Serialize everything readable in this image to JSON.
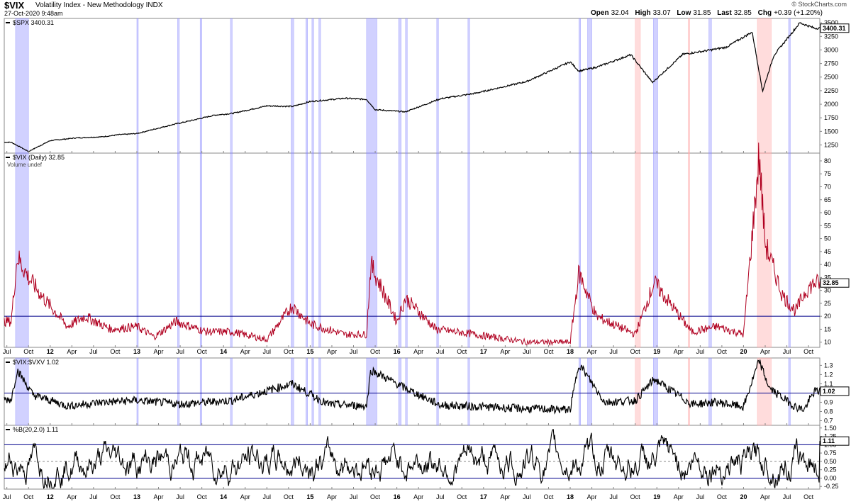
{
  "header": {
    "symbol": "$VIX",
    "name": "Volatility Index - New Methodology",
    "exchange": "INDX",
    "timestamp": "27-Oct-2020 9:48am",
    "brand": "© StockCharts.com",
    "open_label": "Open",
    "open": "32.04",
    "high_label": "High",
    "high": "33.07",
    "low_label": "Low",
    "low": "31.85",
    "last_label": "Last",
    "last": "32.85",
    "chg_label": "Chg",
    "chg": "+0.39 (+1.20%)"
  },
  "chart_data": [
    {
      "type": "line",
      "legend": "$SPX 3400.31",
      "last_value_label": "3400.31",
      "yticks": [
        1250,
        1500,
        1750,
        2000,
        2250,
        2500,
        2750,
        3000,
        3250,
        3500
      ],
      "ylim": [
        1100,
        3580
      ],
      "x": [
        2011.55,
        2011.75,
        2012.0,
        2012.3,
        2012.6,
        2012.8,
        2013.0,
        2013.4,
        2013.6,
        2013.9,
        2014.1,
        2014.5,
        2014.8,
        2015.0,
        2015.4,
        2015.65,
        2015.75,
        2016.1,
        2016.5,
        2016.9,
        2017.5,
        2018.0,
        2018.1,
        2018.3,
        2018.7,
        2018.95,
        2019.3,
        2019.55,
        2019.8,
        2020.1,
        2020.22,
        2020.35,
        2020.5,
        2020.65,
        2020.82
      ],
      "values": [
        1300,
        1130,
        1330,
        1380,
        1400,
        1440,
        1460,
        1620,
        1690,
        1800,
        1830,
        1970,
        1960,
        2050,
        2110,
        2090,
        1900,
        1860,
        2100,
        2200,
        2420,
        2780,
        2610,
        2680,
        2910,
        2400,
        2920,
        2980,
        3050,
        3330,
        2240,
        2900,
        3200,
        3500,
        3400
      ]
    },
    {
      "type": "line",
      "legend": "$VIX (Daily) 32.85",
      "sublegend": "Volume undef",
      "last_value_label": "32.85",
      "yticks": [
        10,
        15,
        20,
        25,
        30,
        35,
        40,
        45,
        50,
        55,
        60,
        65,
        70,
        75,
        80
      ],
      "ylim": [
        8,
        83
      ],
      "reference_line": 20,
      "x": [
        2011.55,
        2011.62,
        2011.75,
        2011.9,
        2012.2,
        2012.4,
        2012.7,
        2013.0,
        2013.2,
        2013.45,
        2013.8,
        2014.1,
        2014.5,
        2014.79,
        2015.0,
        2015.4,
        2015.65,
        2015.7,
        2016.0,
        2016.1,
        2016.45,
        2016.9,
        2017.5,
        2018.0,
        2018.1,
        2018.3,
        2018.75,
        2018.97,
        2019.4,
        2019.7,
        2020.0,
        2020.18,
        2020.25,
        2020.45,
        2020.6,
        2020.72,
        2020.82
      ],
      "values": [
        18,
        43,
        35,
        28,
        16,
        20,
        15,
        16,
        12,
        18,
        14,
        14,
        11,
        24,
        17,
        13,
        13,
        40,
        18,
        27,
        15,
        13,
        10,
        10,
        37,
        20,
        13,
        33,
        14,
        16,
        13,
        82,
        48,
        28,
        22,
        30,
        32.85
      ]
    },
    {
      "type": "line",
      "legend": "$VIX:$VXV 1.02",
      "last_value_label": "1.02",
      "yticks": [
        0.7,
        0.8,
        0.9,
        1.0,
        1.1,
        1.2,
        1.3
      ],
      "ylim": [
        0.65,
        1.38
      ],
      "reference_line": 1.0,
      "x": [
        2011.55,
        2011.62,
        2011.8,
        2012.2,
        2012.6,
        2013.0,
        2013.5,
        2014.1,
        2014.79,
        2015.2,
        2015.65,
        2015.7,
        2016.1,
        2016.5,
        2017.0,
        2017.5,
        2018.0,
        2018.1,
        2018.4,
        2018.75,
        2018.97,
        2019.4,
        2019.7,
        2020.0,
        2020.18,
        2020.3,
        2020.6,
        2020.7,
        2020.82
      ],
      "values": [
        0.93,
        1.25,
        0.98,
        0.86,
        0.9,
        0.92,
        0.88,
        0.92,
        1.1,
        0.88,
        0.86,
        1.25,
        1.05,
        0.87,
        0.85,
        0.83,
        0.82,
        1.32,
        0.9,
        0.92,
        1.15,
        0.88,
        0.9,
        0.85,
        1.35,
        1.05,
        0.85,
        0.82,
        1.02
      ]
    },
    {
      "type": "line",
      "legend": "%B(20,2.0) 1.11",
      "last_value_label": "1.11",
      "yticks": [
        -0.25,
        0.0,
        0.25,
        0.5,
        0.75,
        1.0,
        1.25,
        1.5
      ],
      "ylim": [
        -0.33,
        1.58
      ],
      "reference_lines": [
        0.0,
        0.5,
        1.0
      ],
      "oscillating": true,
      "last_value": 1.11
    }
  ],
  "xaxis": {
    "labels": [
      "Jul",
      "Oct",
      "12",
      "Apr",
      "Jul",
      "Oct",
      "13",
      "Apr",
      "Jul",
      "Oct",
      "14",
      "Apr",
      "Jul",
      "Oct",
      "15",
      "Apr",
      "Jul",
      "Oct",
      "16",
      "Apr",
      "Jul",
      "Oct",
      "17",
      "Apr",
      "Jul",
      "Oct",
      "18",
      "Apr",
      "Jul",
      "Oct",
      "19",
      "Apr",
      "Jul",
      "Oct",
      "20",
      "Apr",
      "Jul",
      "Oct"
    ],
    "dates": [
      2011.5,
      2011.75,
      2012.0,
      2012.25,
      2012.5,
      2012.75,
      2013.0,
      2013.25,
      2013.5,
      2013.75,
      2014.0,
      2014.25,
      2014.5,
      2014.75,
      2015.0,
      2015.25,
      2015.5,
      2015.75,
      2016.0,
      2016.25,
      2016.5,
      2016.75,
      2017.0,
      2017.25,
      2017.5,
      2017.75,
      2018.0,
      2018.25,
      2018.5,
      2018.75,
      2019.0,
      2019.25,
      2019.5,
      2019.75,
      2020.0,
      2020.25,
      2020.5,
      2020.75
    ],
    "bold_labels": [
      "12",
      "13",
      "14",
      "15",
      "16",
      "17",
      "18",
      "19",
      "20"
    ]
  },
  "shaded_periods": [
    {
      "start": 2011.6,
      "end": 2011.75,
      "color": "#7b7bff"
    },
    {
      "start": 2013.0,
      "end": 2013.01,
      "color": "#7b7bff"
    },
    {
      "start": 2013.47,
      "end": 2013.49,
      "color": "#7b7bff"
    },
    {
      "start": 2013.73,
      "end": 2013.75,
      "color": "#7b7bff"
    },
    {
      "start": 2014.08,
      "end": 2014.1,
      "color": "#7b7bff"
    },
    {
      "start": 2014.78,
      "end": 2014.81,
      "color": "#7b7bff"
    },
    {
      "start": 2014.95,
      "end": 2014.97,
      "color": "#7b7bff"
    },
    {
      "start": 2015.02,
      "end": 2015.04,
      "color": "#7b7bff"
    },
    {
      "start": 2015.1,
      "end": 2015.12,
      "color": "#7b7bff"
    },
    {
      "start": 2015.65,
      "end": 2015.77,
      "color": "#7b7bff"
    },
    {
      "start": 2016.02,
      "end": 2016.05,
      "color": "#7b7bff"
    },
    {
      "start": 2016.1,
      "end": 2016.12,
      "color": "#7b7bff"
    },
    {
      "start": 2016.46,
      "end": 2016.48,
      "color": "#7b7bff"
    },
    {
      "start": 2016.82,
      "end": 2016.84,
      "color": "#7b7bff"
    },
    {
      "start": 2018.1,
      "end": 2018.12,
      "color": "#7b7bff"
    },
    {
      "start": 2018.2,
      "end": 2018.25,
      "color": "#7b7bff"
    },
    {
      "start": 2018.75,
      "end": 2018.81,
      "color": "#ff9b9b"
    },
    {
      "start": 2018.96,
      "end": 2019.01,
      "color": "#7b7bff"
    },
    {
      "start": 2019.36,
      "end": 2019.38,
      "color": "#ff9b9b"
    },
    {
      "start": 2019.6,
      "end": 2019.63,
      "color": "#7b7bff"
    },
    {
      "start": 2020.16,
      "end": 2020.32,
      "color": "#ff9b9b"
    },
    {
      "start": 2020.52,
      "end": 2020.54,
      "color": "#7b7bff"
    }
  ],
  "colors": {
    "spx_line": "#000000",
    "vix_line": "#b00020",
    "ratio_line": "#000000",
    "pctb_line": "#000000",
    "reference_line": "#00008b",
    "axis": "#888888"
  }
}
